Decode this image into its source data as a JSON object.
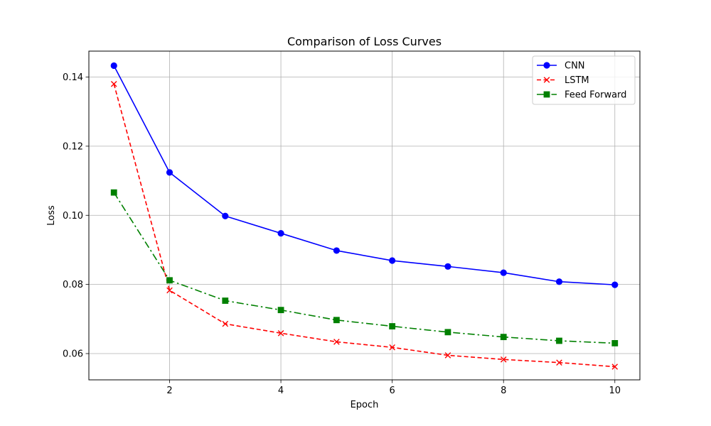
{
  "chart_data": {
    "type": "line",
    "title": "Comparison of Loss Curves",
    "xlabel": "Epoch",
    "ylabel": "Loss",
    "x": [
      1,
      2,
      3,
      4,
      5,
      6,
      7,
      8,
      9,
      10
    ],
    "xlim": [
      0.55,
      10.45
    ],
    "ylim": [
      0.0524,
      0.1475
    ],
    "xticks": [
      2,
      4,
      6,
      8,
      10
    ],
    "xtick_labels": [
      "2",
      "4",
      "6",
      "8",
      "10"
    ],
    "yticks": [
      0.06,
      0.08,
      0.1,
      0.12,
      0.14
    ],
    "ytick_labels": [
      "0.06",
      "0.08",
      "0.10",
      "0.12",
      "0.14"
    ],
    "grid": true,
    "legend_position": "top-right",
    "series": [
      {
        "name": "CNN",
        "color": "#0000ff",
        "linestyle": "solid",
        "marker": "circle",
        "values": [
          0.1433,
          0.1124,
          0.0998,
          0.0948,
          0.0898,
          0.0869,
          0.0852,
          0.0834,
          0.0808,
          0.0799
        ]
      },
      {
        "name": "LSTM",
        "color": "#ff0000",
        "linestyle": "dashed",
        "marker": "x",
        "values": [
          0.138,
          0.0783,
          0.0686,
          0.0659,
          0.0634,
          0.0618,
          0.0595,
          0.0583,
          0.0574,
          0.0562
        ]
      },
      {
        "name": "Feed Forward",
        "color": "#008000",
        "linestyle": "dashdot",
        "marker": "square",
        "values": [
          0.1066,
          0.0812,
          0.0753,
          0.0726,
          0.0697,
          0.0679,
          0.0662,
          0.0648,
          0.0637,
          0.063
        ]
      }
    ]
  }
}
